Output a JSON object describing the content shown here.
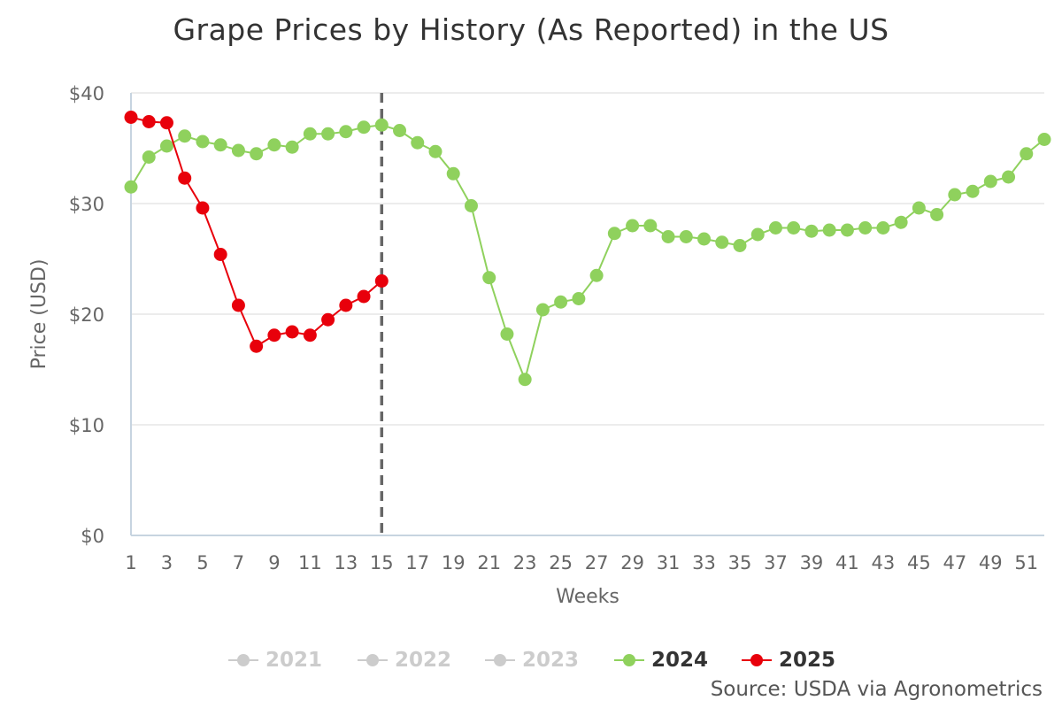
{
  "title": "Grape Prices by History (As Reported) in the US",
  "source": "Source: USDA via Agronometrics",
  "colors": {
    "2024": "#8fd15d",
    "2025": "#e8000b",
    "hidden": "#cccccc",
    "current_week_line": "#666666",
    "grid": "#e6e6e6",
    "axis": "#c7d4e0"
  },
  "legend": [
    {
      "label": "2021",
      "visible": false
    },
    {
      "label": "2022",
      "visible": false
    },
    {
      "label": "2023",
      "visible": false
    },
    {
      "label": "2024",
      "visible": true
    },
    {
      "label": "2025",
      "visible": true
    }
  ],
  "chart_data": {
    "type": "line",
    "title": "Grape Prices by History (As Reported) in the US",
    "xlabel": "Weeks",
    "ylabel": "Price (USD)",
    "xlim": [
      1,
      52
    ],
    "ylim": [
      0,
      40
    ],
    "xticks": [
      1,
      3,
      5,
      7,
      9,
      11,
      13,
      15,
      17,
      19,
      21,
      23,
      25,
      27,
      29,
      31,
      33,
      35,
      37,
      39,
      41,
      43,
      45,
      47,
      49,
      51
    ],
    "yticks": [
      "$0",
      "$10",
      "$20",
      "$30",
      "$40"
    ],
    "yticks_values": [
      0,
      10,
      20,
      30,
      40
    ],
    "grid": true,
    "legend_position": "bottom",
    "current_week": 15,
    "series": [
      {
        "name": "2024",
        "x": [
          1,
          2,
          3,
          4,
          5,
          6,
          7,
          8,
          9,
          10,
          11,
          12,
          13,
          14,
          15,
          16,
          17,
          18,
          19,
          20,
          21,
          22,
          23,
          24,
          25,
          26,
          27,
          28,
          29,
          30,
          31,
          32,
          33,
          34,
          35,
          36,
          37,
          38,
          39,
          40,
          41,
          42,
          43,
          44,
          45,
          46,
          47,
          48,
          49,
          50,
          51,
          52
        ],
        "values": [
          31.5,
          34.2,
          35.2,
          36.1,
          35.6,
          35.3,
          34.8,
          34.5,
          35.3,
          35.1,
          36.3,
          36.3,
          36.5,
          36.9,
          37.1,
          36.6,
          35.5,
          34.7,
          32.7,
          29.8,
          23.3,
          18.2,
          14.1,
          20.4,
          21.1,
          21.4,
          23.5,
          27.3,
          28.0,
          28.0,
          27.0,
          27.0,
          26.8,
          26.5,
          26.2,
          27.2,
          27.8,
          27.8,
          27.5,
          27.6,
          27.6,
          27.8,
          27.8,
          28.3,
          29.6,
          29.0,
          30.8,
          31.1,
          32.0,
          32.4,
          34.5,
          35.8
        ]
      },
      {
        "name": "2025",
        "x": [
          1,
          2,
          3,
          4,
          5,
          6,
          7,
          8,
          9,
          10,
          11,
          12,
          13,
          14,
          15
        ],
        "values": [
          37.8,
          37.4,
          37.3,
          32.3,
          29.6,
          25.4,
          20.8,
          17.1,
          18.1,
          18.4,
          18.1,
          19.5,
          20.8,
          21.6,
          23.0
        ]
      }
    ]
  }
}
